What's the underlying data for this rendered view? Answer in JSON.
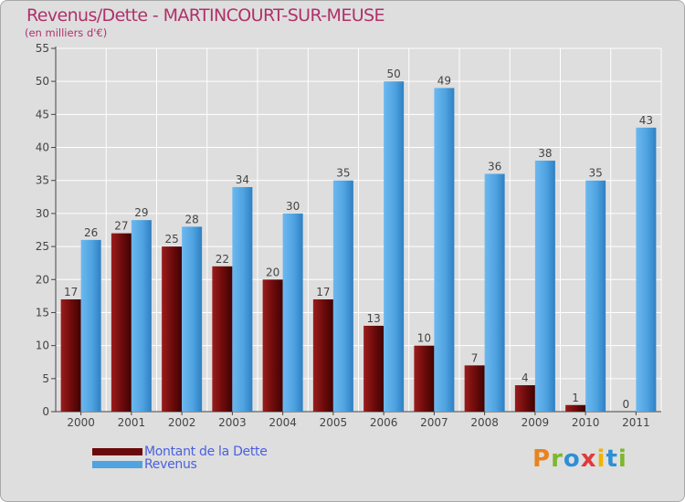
{
  "title": "Revenus/Dette - MARTINCOURT-SUR-MEUSE",
  "subtitle": "(en milliers d'€)",
  "legend": {
    "dette_label": "Montant de la Dette",
    "revenus_label": "Revenus"
  },
  "logo": {
    "text": "Proxiti"
  },
  "colors": {
    "dette": "#6b0a0a",
    "revenus": "#4fa3e0",
    "title": "#b0306a",
    "legend_text": "#4a60e0",
    "background": "#dedede"
  },
  "chart_data": {
    "type": "bar",
    "categories": [
      "2000",
      "2001",
      "2002",
      "2003",
      "2004",
      "2005",
      "2006",
      "2007",
      "2008",
      "2009",
      "2010",
      "2011"
    ],
    "series": [
      {
        "name": "Montant de la Dette",
        "values": [
          17,
          27,
          25,
          22,
          20,
          17,
          13,
          10,
          7,
          4,
          1,
          0
        ]
      },
      {
        "name": "Revenus",
        "values": [
          26,
          29,
          28,
          34,
          30,
          35,
          50,
          49,
          36,
          38,
          35,
          43
        ]
      }
    ],
    "yticks": [
      0,
      5,
      10,
      15,
      20,
      25,
      30,
      35,
      40,
      45,
      50,
      55
    ],
    "ylim": [
      0,
      55
    ],
    "grid": true,
    "legend_position": "bottom-left"
  }
}
